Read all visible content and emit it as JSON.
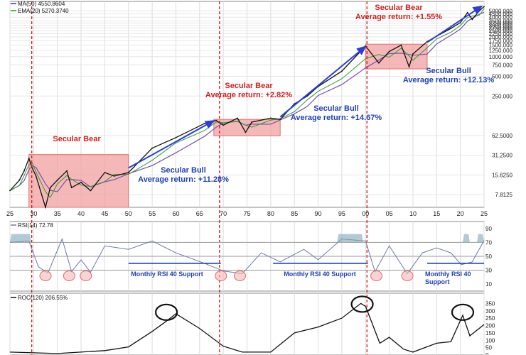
{
  "chart_data": [
    {
      "type": "line",
      "panel": "price",
      "title": "",
      "log_scale": true,
      "ylim": [
        5,
        6000
      ],
      "x_ticks": [
        25,
        30,
        35,
        40,
        45,
        50,
        55,
        60,
        65,
        70,
        75,
        80,
        85,
        90,
        95,
        "00",
        "05",
        10,
        15,
        20,
        25
      ],
      "y_ticks": [
        "7.8125",
        "15.6250",
        "31.2500",
        "62.5000",
        "250.000",
        "500.000",
        "750.000",
        "1000.000",
        "1250.000",
        "1500.000",
        "1750.000",
        "2000.000",
        "2250.000",
        "2500.000",
        "2750.000",
        "3000.000",
        "3250.000",
        "3500.000",
        "4000.000",
        "4500.000",
        "5000.000"
      ],
      "legend": [
        {
          "label": "MA(50) 4550.8604",
          "color": "#2b2bd6"
        },
        {
          "label": "EMA(20) 5270.3740",
          "color": "#2a9d2a"
        }
      ],
      "series": [
        {
          "name": "MA(50)",
          "color": "#7a4fb0"
        },
        {
          "name": "EMA(20)",
          "color": "#2a9d2a"
        }
      ],
      "x": [
        1925,
        1927,
        1928,
        1929,
        1929.7,
        1930.5,
        1932.5,
        1933.5,
        1935,
        1937,
        1938,
        1940,
        1942,
        1945,
        1947,
        1950,
        1955,
        1960,
        1966,
        1968.5,
        1970,
        1973,
        1974.7,
        1976,
        1980,
        1982,
        1985,
        1987.7,
        1990,
        1995,
        2000,
        2002.8,
        2005,
        2007.5,
        2009.2,
        2010,
        2013,
        2015,
        2018,
        2020,
        2021.5,
        2022.5,
        2024,
        2025
      ],
      "y": [
        9,
        13,
        18,
        28,
        20,
        15,
        5,
        10,
        13,
        18,
        10,
        12,
        9,
        17,
        15,
        17,
        40,
        58,
        95,
        106,
        90,
        115,
        70,
        100,
        115,
        110,
        190,
        250,
        350,
        600,
        1450,
        800,
        1200,
        1500,
        700,
        1100,
        1700,
        2050,
        2700,
        3300,
        4700,
        3700,
        5000,
        5800
      ],
      "secular_periods": [
        {
          "label": "Secular Bear",
          "detail": "",
          "start": 1929,
          "end": 1950,
          "color": "#d42020"
        },
        {
          "label": "Secular Bull",
          "detail": "Average return:  +11.28%",
          "start": 1950,
          "end": 1968,
          "color": "#1f3fb3"
        },
        {
          "label": "Secular Bear",
          "detail": "Average return:  +2.82%",
          "start": 1968,
          "end": 1982,
          "color": "#d42020"
        },
        {
          "label": "Secular Bull",
          "detail": "Average return:  +14.67%",
          "start": 1982,
          "end": 2000,
          "color": "#1f3fb3"
        },
        {
          "label": "Secular Bear",
          "detail": "Average return:  +1.55%",
          "start": 2000,
          "end": 2013,
          "color": "#d42020"
        },
        {
          "label": "Secular Bull",
          "detail": "Average return:  +12.13%",
          "start": 2013,
          "end": 2025,
          "color": "#1f3fb3"
        }
      ]
    },
    {
      "type": "line",
      "panel": "rsi",
      "legend": [
        {
          "label": "RSI(14) 72.78",
          "color": "#6b7aa8"
        }
      ],
      "ylim": [
        0,
        100
      ],
      "y_ticks": [
        10,
        30,
        50,
        70,
        90
      ],
      "reference_lines": [
        30,
        50,
        70
      ],
      "x": [
        1925,
        1929,
        1931,
        1933,
        1936,
        1938,
        1940,
        1942,
        1945,
        1950,
        1955,
        1960,
        1966,
        1970,
        1974,
        1978,
        1982,
        1987,
        1990,
        1995,
        2000,
        2002,
        2005,
        2008.8,
        2012,
        2015,
        2018,
        2020.2,
        2022.5,
        2025
      ],
      "y": [
        70,
        72,
        35,
        26,
        75,
        28,
        45,
        27,
        65,
        60,
        72,
        55,
        40,
        29,
        25,
        55,
        42,
        60,
        45,
        75,
        72,
        28,
        65,
        25,
        55,
        62,
        55,
        38,
        42,
        72.78
      ],
      "annotations": [
        {
          "label": "Monthly RSI 40 Support",
          "start": 1950,
          "end": 1969.5,
          "value": 40
        },
        {
          "label": "Monthly RSI 40 Support",
          "start": 1980.5,
          "end": 2000.5,
          "value": 40
        },
        {
          "label": "Monthly RSI 40 Support",
          "start": 2013,
          "end": 2025,
          "value": 40
        }
      ]
    },
    {
      "type": "line",
      "panel": "roc",
      "legend": [
        {
          "label": "ROC(120) 206.55%",
          "color": "#111111"
        }
      ],
      "ylim": [
        0,
        400
      ],
      "y_ticks": [
        0,
        50,
        100,
        150,
        200,
        250,
        300,
        350
      ],
      "x": [
        1925,
        1935,
        1945,
        1950,
        1955,
        1958,
        1960,
        1965,
        1970,
        1974,
        1980,
        1985,
        1990,
        1995,
        1999,
        2000,
        2003,
        2005,
        2008,
        2010,
        2015,
        2018,
        2020.5,
        2022,
        2025
      ],
      "y": [
        20,
        10,
        30,
        55,
        160,
        230,
        280,
        180,
        60,
        20,
        20,
        150,
        190,
        250,
        350,
        330,
        80,
        120,
        40,
        20,
        80,
        90,
        270,
        130,
        206.55
      ]
    }
  ]
}
